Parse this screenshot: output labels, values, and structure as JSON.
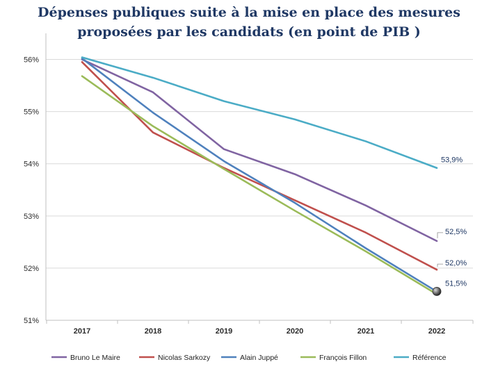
{
  "chart_data": {
    "type": "line",
    "title_line1": "Dépenses publiques suite à la mise en place des mesures",
    "title_line2": "proposées par les candidats (en point de PIB )",
    "xlabel": "",
    "ylabel": "",
    "x": [
      "2017",
      "2018",
      "2019",
      "2020",
      "2021",
      "2022"
    ],
    "ylim": [
      51,
      56.5
    ],
    "yticks": [
      51,
      52,
      53,
      54,
      55,
      56
    ],
    "ytick_labels": [
      "51%",
      "52%",
      "53%",
      "54%",
      "55%",
      "56%"
    ],
    "grid": "horizontal",
    "legend_position": "bottom",
    "series": [
      {
        "name": "Bruno Le Maire",
        "color": "#8064A2",
        "values": [
          56.0,
          55.37,
          54.28,
          53.8,
          53.2,
          52.52
        ]
      },
      {
        "name": "Nicolas Sarkozy",
        "color": "#C0504D",
        "values": [
          55.95,
          54.6,
          53.92,
          53.3,
          52.68,
          51.97
        ]
      },
      {
        "name": "Alain Juppé",
        "color": "#4F81BD",
        "values": [
          56.02,
          54.98,
          54.05,
          53.25,
          52.38,
          51.55
        ]
      },
      {
        "name": "François Fillon",
        "color": "#9BBB59",
        "values": [
          55.68,
          54.72,
          53.9,
          53.1,
          52.32,
          51.5
        ]
      },
      {
        "name": "Référence",
        "color": "#4BACC6",
        "values": [
          56.04,
          55.65,
          55.2,
          54.85,
          54.43,
          53.92
        ]
      }
    ],
    "annotations": [
      {
        "series": "Référence",
        "text": "53,9%"
      },
      {
        "series": "Bruno Le Maire",
        "text": "52,5%"
      },
      {
        "series": "Nicolas Sarkozy",
        "text": "52,0%"
      },
      {
        "series": "François Fillon",
        "text": "51,5%"
      }
    ]
  }
}
